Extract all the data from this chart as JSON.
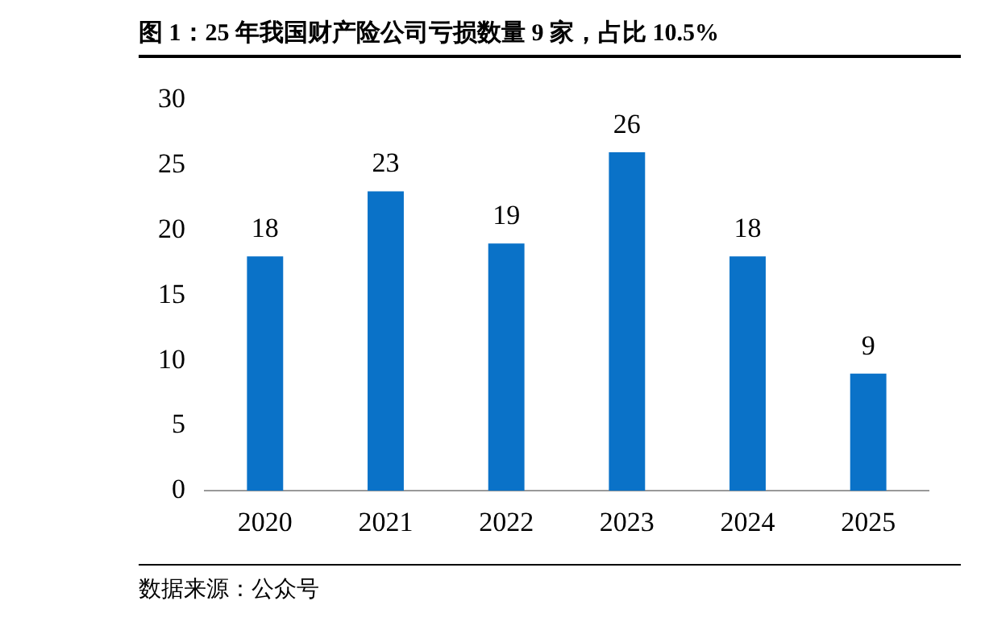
{
  "chart_data": {
    "type": "bar",
    "title": "图 1：25 年我国财产险公司亏损数量 9 家，占比 10.5%",
    "categories": [
      "2020",
      "2021",
      "2022",
      "2023",
      "2024",
      "2025"
    ],
    "values": [
      18,
      23,
      19,
      26,
      18,
      9
    ],
    "color": "#0a72c8",
    "ylim": [
      0,
      30
    ],
    "yticks": [
      0,
      5,
      10,
      15,
      20,
      25,
      30
    ],
    "grid": false,
    "legend": false,
    "data_labels": true,
    "annotations": [
      "数据来源：公众号"
    ]
  }
}
